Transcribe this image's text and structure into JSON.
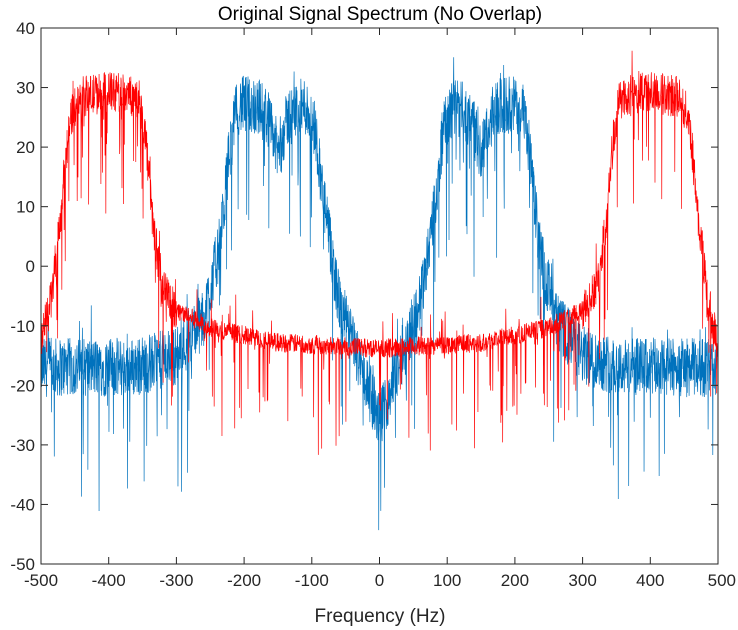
{
  "chart_data": {
    "type": "line",
    "title": "Original Signal Spectrum (No Overlap)",
    "xlabel": "Frequency (Hz)",
    "ylabel": "",
    "xlim": [
      -500,
      500
    ],
    "ylim": [
      -50,
      40
    ],
    "xticks": [
      -500,
      -400,
      -300,
      -200,
      -100,
      0,
      100,
      200,
      300,
      400,
      500
    ],
    "yticks": [
      -50,
      -40,
      -30,
      -20,
      -10,
      0,
      10,
      20,
      30,
      40
    ],
    "grid": false,
    "legend": "none",
    "series": [
      {
        "color": "#0072BD",
        "envelope": [
          {
            "x": -500,
            "y": -16
          },
          {
            "x": -360,
            "y": -16
          },
          {
            "x": -300,
            "y": -14
          },
          {
            "x": -260,
            "y": -8
          },
          {
            "x": -235,
            "y": 5
          },
          {
            "x": -222,
            "y": 20
          },
          {
            "x": -210,
            "y": 28
          },
          {
            "x": -180,
            "y": 28
          },
          {
            "x": -165,
            "y": 26
          },
          {
            "x": -150,
            "y": 20
          },
          {
            "x": -135,
            "y": 26
          },
          {
            "x": -110,
            "y": 28
          },
          {
            "x": -95,
            "y": 24
          },
          {
            "x": -80,
            "y": 10
          },
          {
            "x": -60,
            "y": -5
          },
          {
            "x": -30,
            "y": -15
          },
          {
            "x": 0,
            "y": -25
          },
          {
            "x": 30,
            "y": -15
          },
          {
            "x": 60,
            "y": -5
          },
          {
            "x": 80,
            "y": 10
          },
          {
            "x": 95,
            "y": 24
          },
          {
            "x": 110,
            "y": 28
          },
          {
            "x": 135,
            "y": 26
          },
          {
            "x": 150,
            "y": 20
          },
          {
            "x": 165,
            "y": 26
          },
          {
            "x": 180,
            "y": 28
          },
          {
            "x": 210,
            "y": 28
          },
          {
            "x": 222,
            "y": 20
          },
          {
            "x": 235,
            "y": 5
          },
          {
            "x": 260,
            "y": -8
          },
          {
            "x": 300,
            "y": -14
          },
          {
            "x": 360,
            "y": -16
          },
          {
            "x": 500,
            "y": -16
          }
        ]
      },
      {
        "color": "#FF0000",
        "envelope": [
          {
            "x": -500,
            "y": -12
          },
          {
            "x": -485,
            "y": -5
          },
          {
            "x": -470,
            "y": 10
          },
          {
            "x": -458,
            "y": 25
          },
          {
            "x": -445,
            "y": 29
          },
          {
            "x": -400,
            "y": 30
          },
          {
            "x": -355,
            "y": 29
          },
          {
            "x": -345,
            "y": 22
          },
          {
            "x": -335,
            "y": 8
          },
          {
            "x": -320,
            "y": -3
          },
          {
            "x": -300,
            "y": -7
          },
          {
            "x": -250,
            "y": -10
          },
          {
            "x": -150,
            "y": -12.5
          },
          {
            "x": 0,
            "y": -13.5
          },
          {
            "x": 150,
            "y": -12.5
          },
          {
            "x": 250,
            "y": -10
          },
          {
            "x": 300,
            "y": -7
          },
          {
            "x": 320,
            "y": -3
          },
          {
            "x": 335,
            "y": 8
          },
          {
            "x": 345,
            "y": 22
          },
          {
            "x": 355,
            "y": 29
          },
          {
            "x": 400,
            "y": 30
          },
          {
            "x": 445,
            "y": 29
          },
          {
            "x": 458,
            "y": 25
          },
          {
            "x": 470,
            "y": 10
          },
          {
            "x": 485,
            "y": -5
          },
          {
            "x": 500,
            "y": -12
          }
        ]
      }
    ]
  }
}
